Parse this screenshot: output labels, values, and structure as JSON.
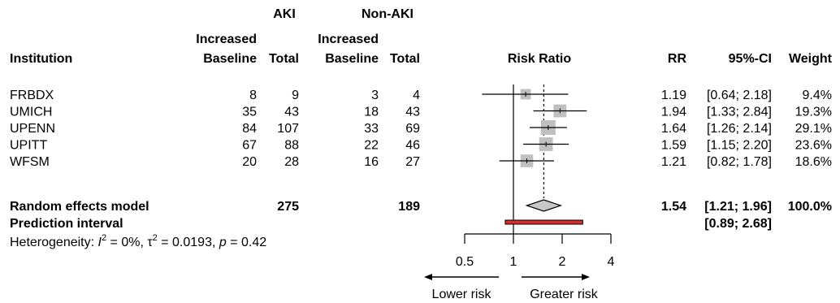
{
  "chart_data": {
    "type": "forest",
    "headers": {
      "group1": "AKI",
      "group2": "Non-AKI",
      "institution": "Institution",
      "increased_baseline_l1": "Increased",
      "increased_baseline_l2": "Baseline",
      "total": "Total",
      "risk_ratio": "Risk Ratio",
      "rr": "RR",
      "ci": "95%-CI",
      "weight": "Weight"
    },
    "studies": [
      {
        "name": "FRBDX",
        "aki_events": "8",
        "aki_total": "9",
        "non_events": "3",
        "non_total": "4",
        "rr": 1.19,
        "lo": 0.64,
        "hi": 2.18,
        "weight_pct": 9.4,
        "rr_text": "1.19",
        "ci_text": "[0.64; 2.18]",
        "weight_text": "9.4%"
      },
      {
        "name": "UMICH",
        "aki_events": "35",
        "aki_total": "43",
        "non_events": "18",
        "non_total": "43",
        "rr": 1.94,
        "lo": 1.33,
        "hi": 2.84,
        "weight_pct": 19.3,
        "rr_text": "1.94",
        "ci_text": "[1.33; 2.84]",
        "weight_text": "19.3%"
      },
      {
        "name": "UPENN",
        "aki_events": "84",
        "aki_total": "107",
        "non_events": "33",
        "non_total": "69",
        "rr": 1.64,
        "lo": 1.26,
        "hi": 2.14,
        "weight_pct": 29.1,
        "rr_text": "1.64",
        "ci_text": "[1.26; 2.14]",
        "weight_text": "29.1%"
      },
      {
        "name": "UPITT",
        "aki_events": "67",
        "aki_total": "88",
        "non_events": "22",
        "non_total": "46",
        "rr": 1.59,
        "lo": 1.15,
        "hi": 2.2,
        "weight_pct": 23.6,
        "rr_text": "1.59",
        "ci_text": "[1.15; 2.20]",
        "weight_text": "23.6%"
      },
      {
        "name": "WFSM",
        "aki_events": "20",
        "aki_total": "28",
        "non_events": "16",
        "non_total": "27",
        "rr": 1.21,
        "lo": 0.82,
        "hi": 1.78,
        "weight_pct": 18.6,
        "rr_text": "1.21",
        "ci_text": "[0.82; 1.78]",
        "weight_text": "18.6%"
      }
    ],
    "random_effects": {
      "label": "Random effects model",
      "aki_total": "275",
      "non_total": "189",
      "rr": 1.54,
      "lo": 1.21,
      "hi": 1.96,
      "rr_text": "1.54",
      "ci_text": "[1.21; 1.96]",
      "weight_text": "100.0%"
    },
    "prediction_interval": {
      "label": "Prediction interval",
      "lo": 0.89,
      "hi": 2.68,
      "ci_text": "[0.89; 2.68]"
    },
    "heterogeneity": {
      "prefix": "Heterogeneity: ",
      "i2": "0%",
      "tau2": "0.0193",
      "p": "0.42"
    },
    "x_axis": {
      "scale": "log",
      "ticks": [
        0.5,
        1,
        2,
        4
      ],
      "tick_labels": [
        "0.5",
        "1",
        "2",
        "4"
      ],
      "null_line": 1
    },
    "direction_labels": {
      "left": "Lower risk",
      "right": "Greater risk"
    },
    "colors": {
      "study_square": "#c0c0c0",
      "pred_fill": "#d32f2f",
      "diamond_fill": "#c8c8c8"
    }
  }
}
